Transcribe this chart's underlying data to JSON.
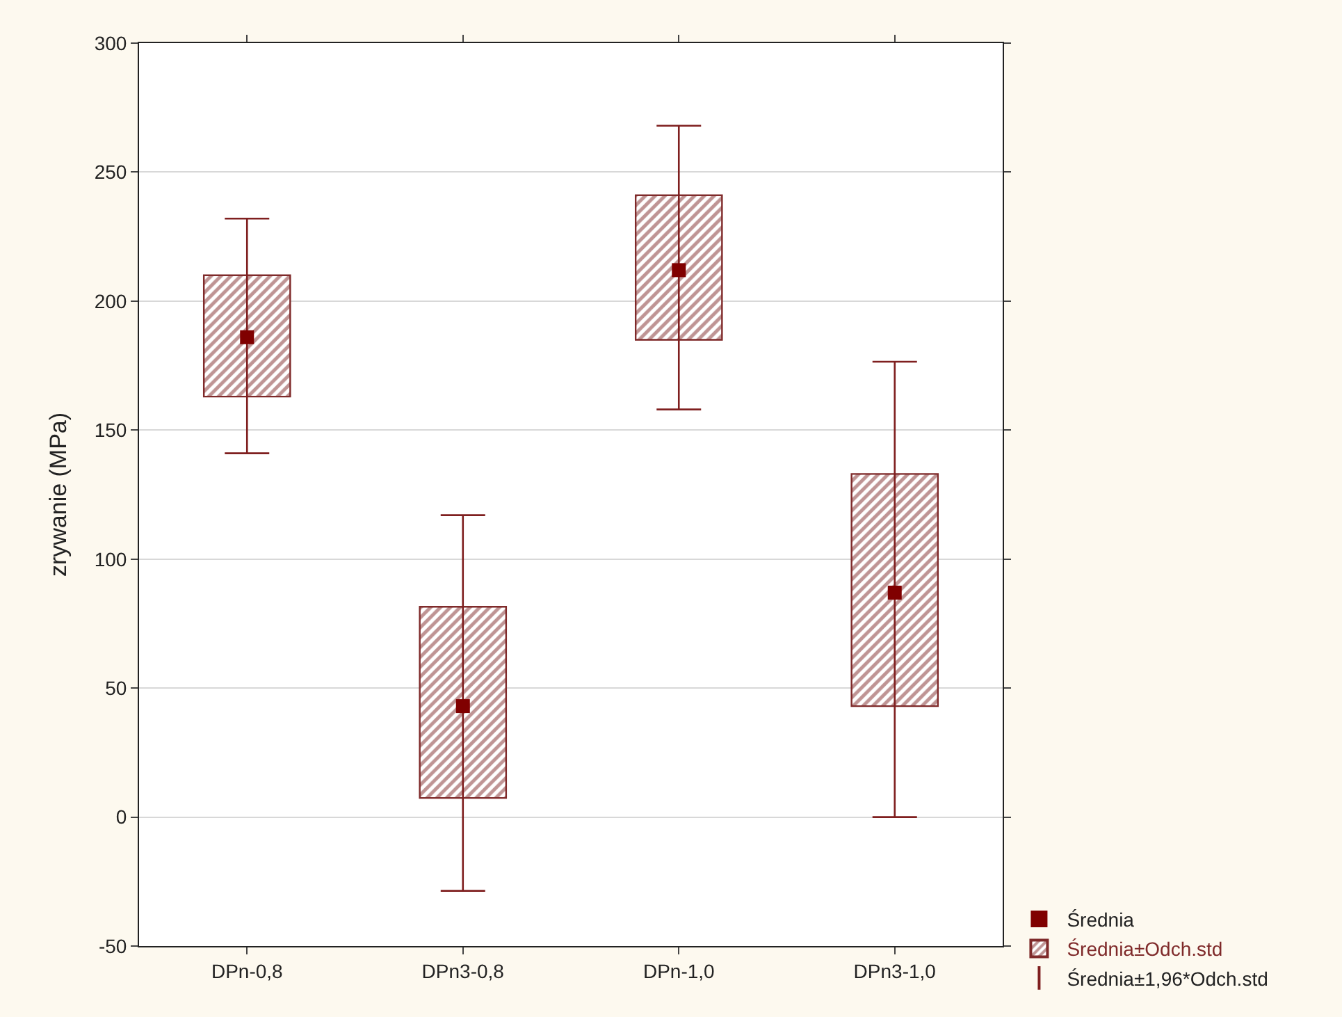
{
  "chart_data": {
    "type": "box",
    "ylabel": "zrywanie (MPa)",
    "categories": [
      "DPn-0,8",
      "DPn3-0,8",
      "DPn-1,0",
      "DPn3-1,0"
    ],
    "ylim": [
      -50,
      300
    ],
    "yticks": [
      -50,
      0,
      50,
      100,
      150,
      200,
      250,
      300
    ],
    "grid": "y",
    "legend": "bottom right",
    "annotations": [
      "Średnia±1,96*Odch.std"
    ],
    "series": [
      {
        "name": "Średnia",
        "type": "scatter",
        "marker": "square",
        "color": "#800000",
        "values": [
          186,
          43,
          212,
          87
        ],
        "errors": [
          [
            141,
            232
          ],
          [
            -28.6,
            117
          ],
          [
            158,
            268
          ],
          [
            0,
            176.5
          ]
        ]
      },
      {
        "name": "Średnia±Odch.std",
        "type": "bar",
        "color": "#7f2a2a",
        "base": [
          163,
          7.4,
          185,
          43
        ],
        "values": [
          47,
          74.1,
          56,
          90
        ]
      }
    ]
  }
}
